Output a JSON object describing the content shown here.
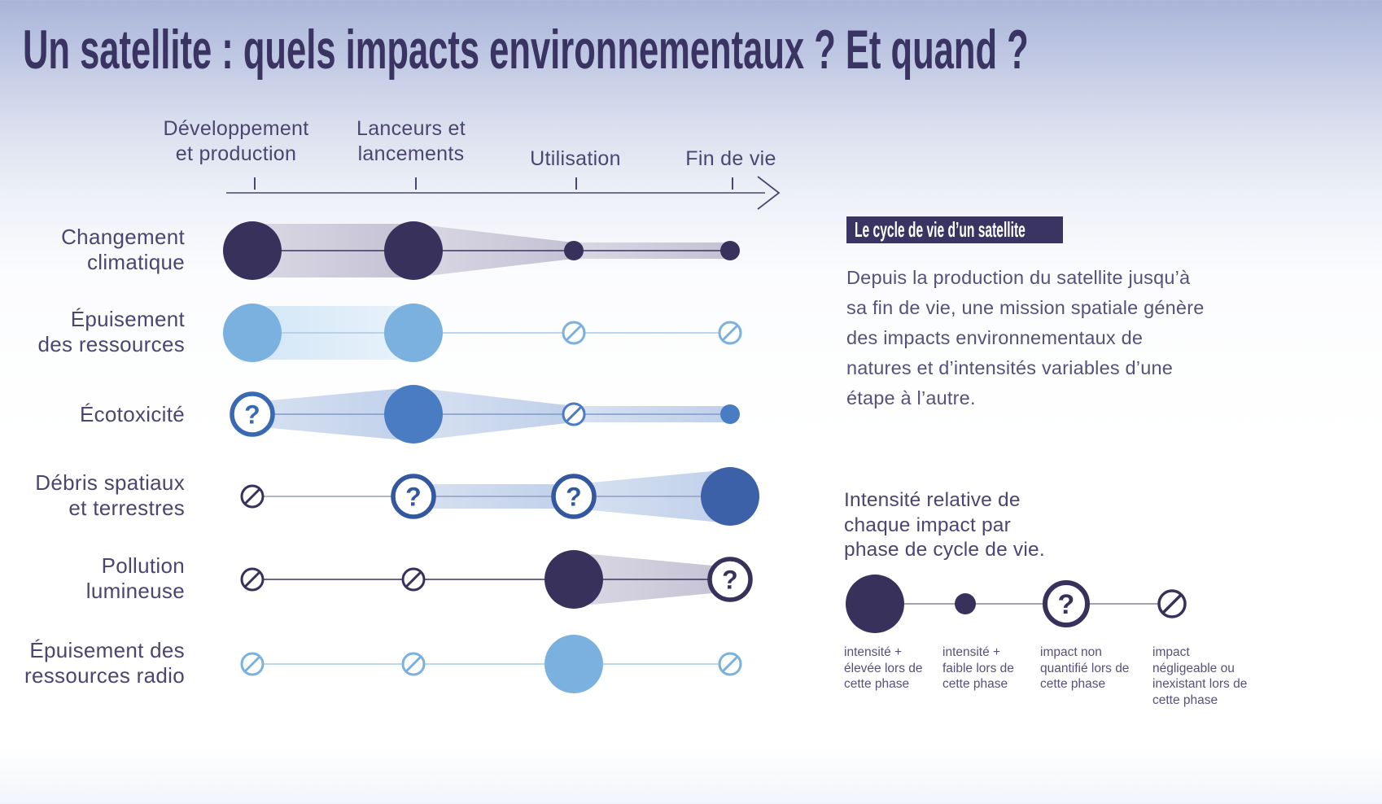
{
  "title": "Un satellite : quels impacts environnementaux ? Et quand ?",
  "timeline": {
    "phases": [
      {
        "label_lines": [
          "Développement",
          "et production"
        ]
      },
      {
        "label_lines": [
          "Lanceurs et",
          "lancements"
        ]
      },
      {
        "label_lines": [
          "Utilisation"
        ]
      },
      {
        "label_lines": [
          "Fin de vie"
        ]
      }
    ]
  },
  "rows": [
    {
      "label_lines": [
        "Changement",
        "climatique"
      ],
      "color": "navy",
      "cells": [
        {
          "type": "high"
        },
        {
          "type": "high"
        },
        {
          "type": "low"
        },
        {
          "type": "low"
        }
      ],
      "bands": [
        [
          0,
          1
        ],
        [
          1,
          2
        ],
        [
          2,
          3
        ]
      ]
    },
    {
      "label_lines": [
        "Épuisement",
        "des ressources"
      ],
      "color": "lightblue",
      "cells": [
        {
          "type": "high"
        },
        {
          "type": "high"
        },
        {
          "type": "none"
        },
        {
          "type": "none"
        }
      ],
      "bands": [
        [
          0,
          1
        ]
      ]
    },
    {
      "label_lines": [
        "Écotoxicité"
      ],
      "color": "blue",
      "cells": [
        {
          "type": "question"
        },
        {
          "type": "high"
        },
        {
          "type": "none"
        },
        {
          "type": "low"
        }
      ],
      "bands": [
        [
          0,
          1
        ],
        [
          1,
          2
        ],
        [
          2,
          3
        ]
      ]
    },
    {
      "label_lines": [
        "Débris spatiaux",
        "et terrestres"
      ],
      "color": "indigo",
      "cells": [
        {
          "type": "none",
          "color": "navy"
        },
        {
          "type": "question"
        },
        {
          "type": "question"
        },
        {
          "type": "high"
        }
      ],
      "bands": [
        [
          1,
          2
        ],
        [
          2,
          3
        ]
      ]
    },
    {
      "label_lines": [
        "Pollution",
        "lumineuse"
      ],
      "color": "navy",
      "cells": [
        {
          "type": "none"
        },
        {
          "type": "none"
        },
        {
          "type": "high"
        },
        {
          "type": "question"
        }
      ],
      "bands": [
        [
          2,
          3
        ]
      ]
    },
    {
      "label_lines": [
        "Épuisement des",
        "ressources radio"
      ],
      "color": "lightblue",
      "cells": [
        {
          "type": "none"
        },
        {
          "type": "none"
        },
        {
          "type": "high"
        },
        {
          "type": "none"
        }
      ],
      "bands": []
    }
  ],
  "panel": {
    "badge": "Le cycle de vie d’un satellite",
    "description_lines": [
      "Depuis la production du satellite jusqu’à",
      "sa fin de vie, une mission spatiale génère",
      "des impacts environnementaux de",
      "natures et d’intensités variables d’une",
      "étape à l’autre."
    ]
  },
  "legend": {
    "title_lines": [
      "Intensité relative de",
      "chaque impact par",
      "phase de cycle de vie."
    ],
    "items": [
      {
        "type": "high",
        "label": "intensité + élevée lors de cette phase"
      },
      {
        "type": "low",
        "label": "intensité + faible lors de cette phase"
      },
      {
        "type": "question",
        "label": "impact non quantifié lors de cette phase"
      },
      {
        "type": "none",
        "label": "impact négligeable ou inexistant lors de cette phase"
      }
    ]
  },
  "colors": {
    "navy": "#38315C",
    "lightblue": "#7AB1DF",
    "blue": "#4A7CC4",
    "indigo": "#3C61A9",
    "navy_ring": "#38315C",
    "lightblue_ring": "#7AB1DF",
    "blue_ring": "#3A69B4",
    "indigo_ring": "#33589F",
    "band_navy_from": "#DAD8E4",
    "band_navy_to": "#C4C1D4",
    "band_lightblue_from": "#D3E6F6",
    "band_lightblue_to": "#E9F3FB",
    "band_blue_from": "#D7E1F1",
    "band_blue_to": "#C0D0EA",
    "line_navy": "#3A3462",
    "line_lightblue": "#A5CAEA",
    "line_blue": "#7B9CCE",
    "line_indigo": "#949CC0",
    "text_heading": "#3A3462",
    "text_label": "#4B4670",
    "text_body": "#55517A",
    "legend_line": "#A3A3AB",
    "badge_bg": "#3A3462",
    "badge_text": "#FFFFFF"
  }
}
